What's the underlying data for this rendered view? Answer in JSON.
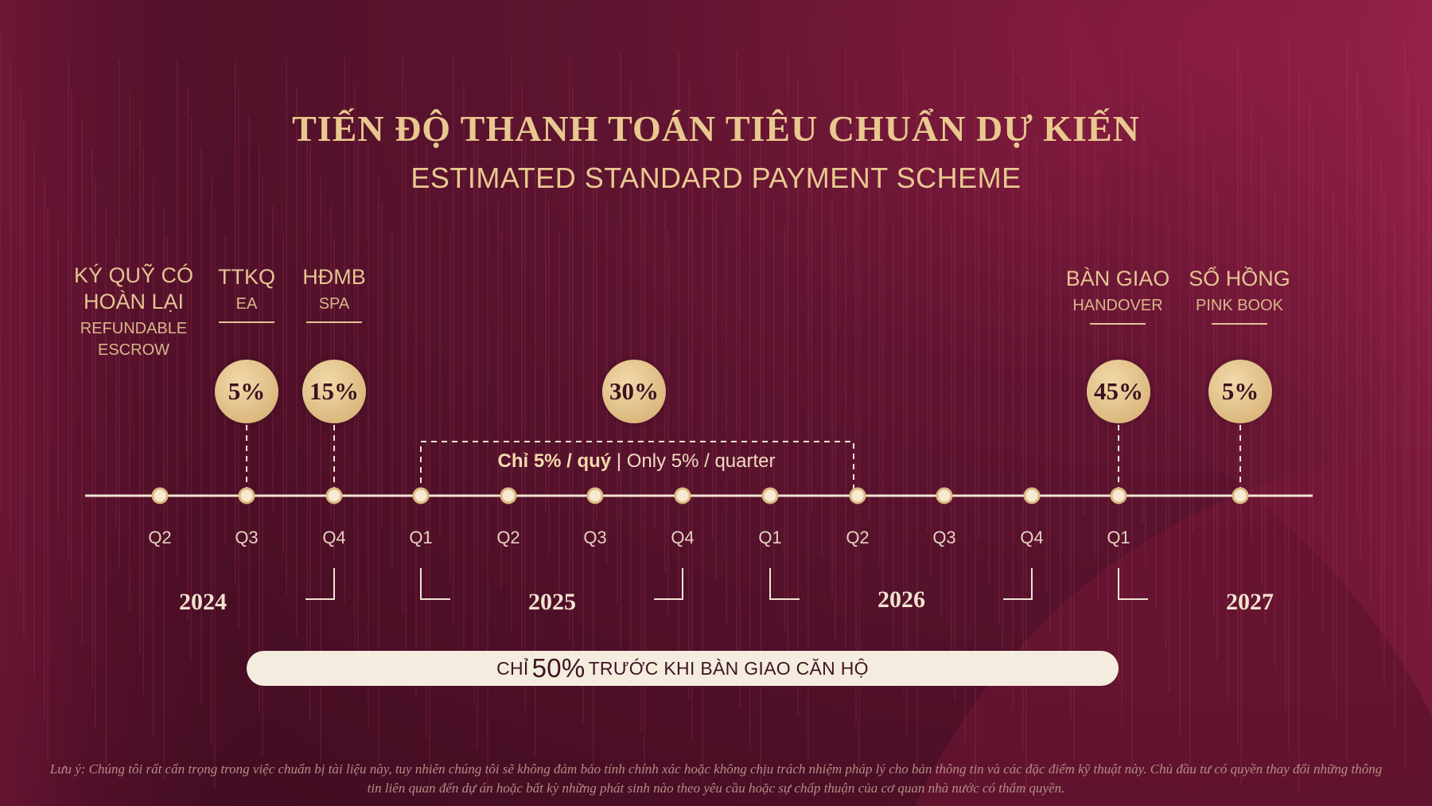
{
  "title": {
    "vi": "TIẾN ĐỘ THANH TOÁN TIÊU CHUẨN DỰ KIẾN",
    "en": "ESTIMATED STANDARD PAYMENT SCHEME"
  },
  "milestones": [
    {
      "vi": "KÝ QUỸ CÓ HOÀN LẠI",
      "en": "REFUNDABLE ESCROW"
    },
    {
      "vi": "TTKQ",
      "en": "EA",
      "percent": "5%"
    },
    {
      "vi": "HĐMB",
      "en": "SPA",
      "percent": "15%"
    },
    {
      "percent": "30%"
    },
    {
      "vi": "BÀN GIAO",
      "en": "HANDOVER",
      "percent": "45%"
    },
    {
      "vi": "SỔ HỒNG",
      "en": "PINK BOOK",
      "percent": "5%"
    }
  ],
  "quarter_note": {
    "vi": "Chỉ 5% / quý",
    "en": "Only 5% / quarter"
  },
  "quarters": [
    "Q2",
    "Q3",
    "Q4",
    "Q1",
    "Q2",
    "Q3",
    "Q4",
    "Q1",
    "Q2",
    "Q3",
    "Q4",
    "Q1"
  ],
  "years": [
    "2024",
    "2025",
    "2026",
    "2027"
  ],
  "summary": {
    "pre": "CHỈ",
    "value": "50%",
    "post": "TRƯỚC KHI BÀN GIAO CĂN HỘ"
  },
  "footnote": "Lưu ý: Chúng tôi rất cẩn trọng trong việc chuẩn bị tài liệu này, tuy nhiên chúng tôi sẽ không đảm bảo tính chính xác hoặc không chịu trách nhiệm pháp lý cho bản thông tin và các đặc điểm kỹ thuật này. Chủ đầu tư có quyền thay đổi những thông tin liên quan đến dự án hoặc bất kỳ những phát sinh nào theo yêu cầu hoặc sự chấp thuận của cơ quan nhà nước có thẩm quyền.",
  "colors": {
    "gold": "#e4c491",
    "badge": "#dcb97f",
    "background": "#5e1430",
    "pill": "#f4eddf"
  }
}
